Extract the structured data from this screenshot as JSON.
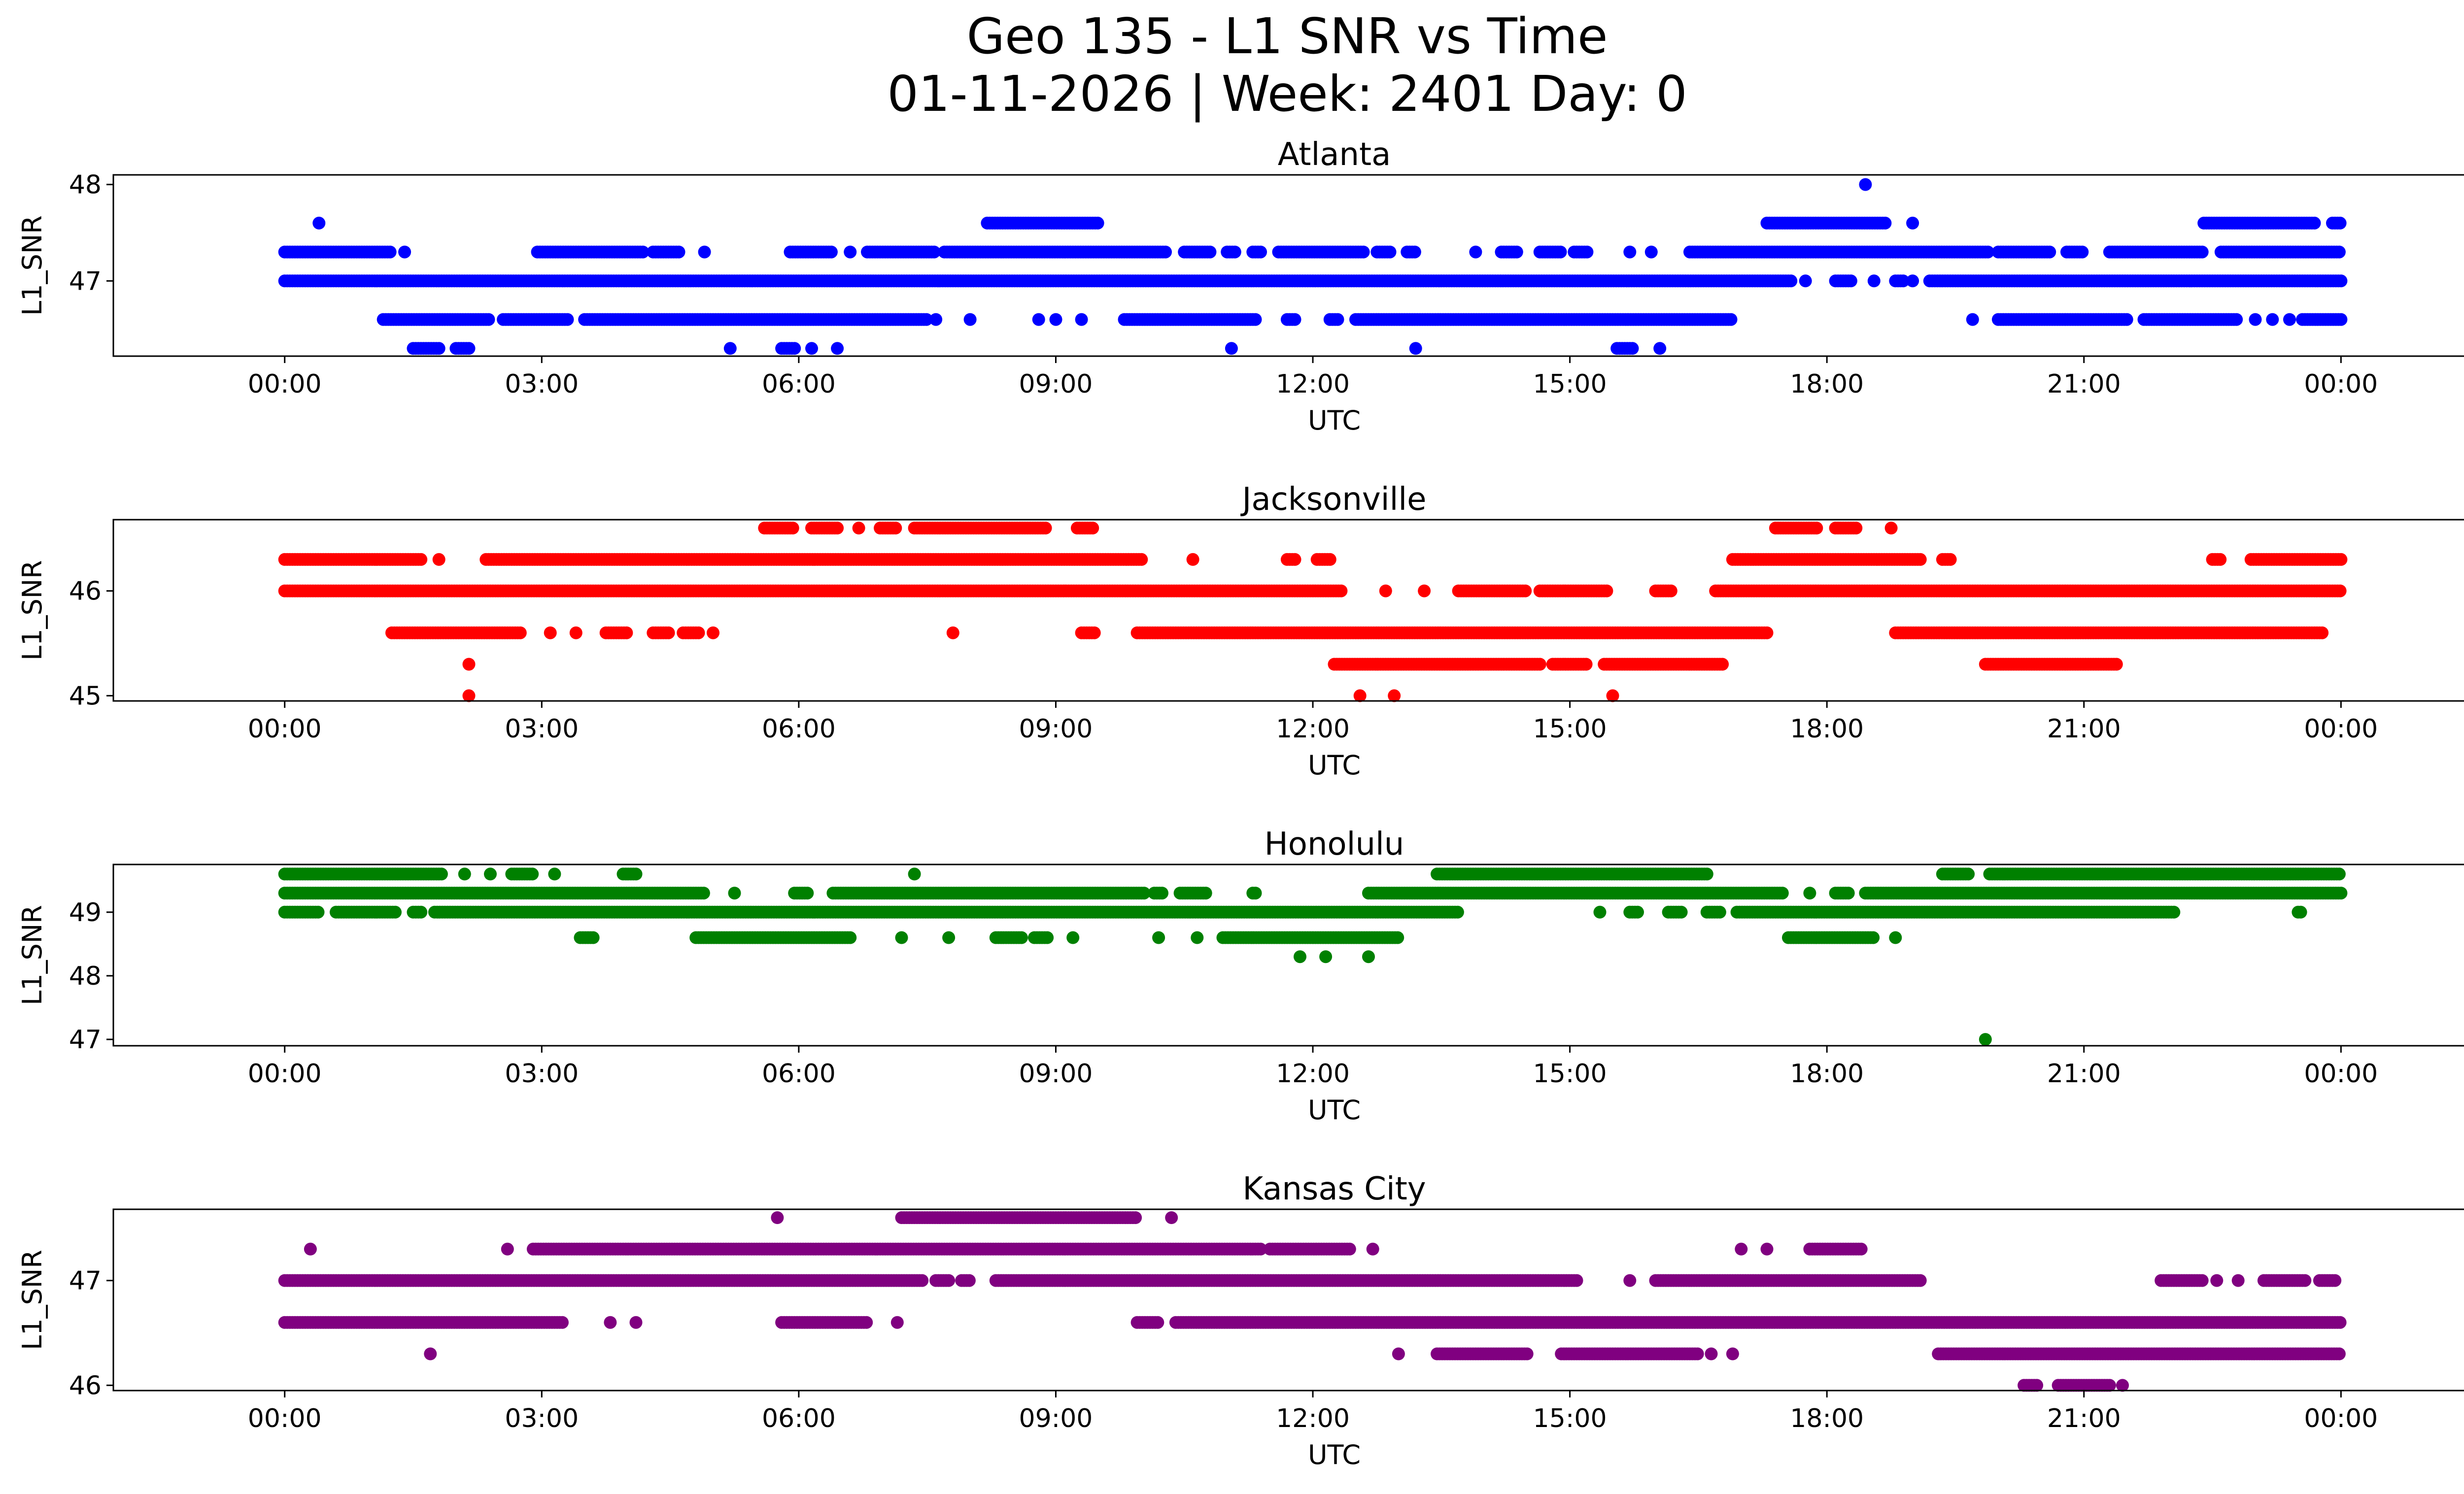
{
  "title": {
    "line1": "Geo 135 - L1 SNR vs Time",
    "line2": "01-11-2026 | Week: 2401 Day: 0"
  },
  "chart_data": [
    {
      "type": "scatter",
      "title": "Atlanta",
      "xlabel": "UTC",
      "ylabel": "L1_SNR",
      "color": "#0000ff",
      "xlim": [
        -2,
        26.5
      ],
      "ylim": [
        46.22,
        48.1
      ],
      "yticks": [
        47,
        48
      ],
      "xticks": [
        "00:00",
        "03:00",
        "06:00",
        "09:00",
        "12:00",
        "15:00",
        "18:00",
        "21:00",
        "00:00"
      ],
      "grid": false,
      "series": [
        {
          "y": 48.0,
          "runs": [
            [
              18.45,
              18.45
            ]
          ]
        },
        {
          "y": 47.6,
          "runs": [
            [
              0.4,
              0.4
            ],
            [
              8.2,
              9.5
            ],
            [
              17.3,
              18.7
            ],
            [
              19.0,
              19.0
            ],
            [
              22.4,
              23.7
            ],
            [
              23.9,
              24.0
            ]
          ]
        },
        {
          "y": 47.3,
          "runs": [
            [
              0.0,
              1.25
            ],
            [
              1.4,
              1.4
            ],
            [
              2.95,
              4.2
            ],
            [
              4.3,
              4.6
            ],
            [
              4.9,
              4.9
            ],
            [
              5.9,
              6.4
            ],
            [
              6.6,
              6.6
            ],
            [
              6.8,
              7.6
            ],
            [
              7.7,
              10.3
            ],
            [
              10.5,
              10.8
            ],
            [
              11.0,
              11.1
            ],
            [
              11.3,
              11.4
            ],
            [
              11.6,
              12.6
            ],
            [
              12.75,
              12.9
            ],
            [
              13.1,
              13.2
            ],
            [
              13.9,
              13.9
            ],
            [
              14.2,
              14.4
            ],
            [
              14.65,
              14.9
            ],
            [
              15.05,
              15.2
            ],
            [
              15.7,
              15.7
            ],
            [
              15.95,
              15.95
            ],
            [
              16.4,
              19.9
            ],
            [
              20.0,
              20.6
            ],
            [
              20.8,
              21.0
            ],
            [
              21.3,
              22.4
            ],
            [
              22.6,
              24.0
            ]
          ]
        },
        {
          "y": 47.0,
          "runs": [
            [
              0.0,
              17.6
            ],
            [
              17.75,
              17.75
            ],
            [
              18.1,
              18.3
            ],
            [
              18.55,
              18.55
            ],
            [
              18.8,
              18.9
            ],
            [
              19.0,
              19.0
            ],
            [
              19.2,
              24.0
            ]
          ]
        },
        {
          "y": 46.6,
          "runs": [
            [
              1.15,
              2.4
            ],
            [
              2.55,
              3.3
            ],
            [
              3.5,
              7.5
            ],
            [
              7.6,
              7.6
            ],
            [
              8.0,
              8.0
            ],
            [
              8.8,
              8.8
            ],
            [
              9.0,
              9.0
            ],
            [
              9.3,
              9.3
            ],
            [
              9.8,
              11.35
            ],
            [
              11.7,
              11.8
            ],
            [
              12.2,
              12.3
            ],
            [
              12.5,
              16.9
            ],
            [
              19.7,
              19.7
            ],
            [
              20.0,
              21.5
            ],
            [
              21.7,
              22.8
            ],
            [
              23.0,
              23.0
            ],
            [
              23.2,
              23.2
            ],
            [
              23.4,
              23.4
            ],
            [
              23.55,
              24.0
            ]
          ]
        },
        {
          "y": 46.3,
          "runs": [
            [
              1.5,
              1.8
            ],
            [
              2.0,
              2.15
            ],
            [
              5.2,
              5.2
            ],
            [
              5.8,
              5.95
            ],
            [
              6.15,
              6.15
            ],
            [
              6.45,
              6.45
            ],
            [
              11.05,
              11.05
            ],
            [
              13.2,
              13.2
            ],
            [
              15.55,
              15.75
            ],
            [
              16.05,
              16.05
            ]
          ]
        }
      ]
    },
    {
      "type": "scatter",
      "title": "Jacksonville",
      "xlabel": "UTC",
      "ylabel": "L1_SNR",
      "color": "#ff0000",
      "xlim": [
        -2,
        26.5
      ],
      "ylim": [
        44.95,
        46.68
      ],
      "yticks": [
        45,
        46
      ],
      "xticks": [
        "00:00",
        "03:00",
        "06:00",
        "09:00",
        "12:00",
        "15:00",
        "18:00",
        "21:00",
        "00:00"
      ],
      "grid": false,
      "series": [
        {
          "y": 46.6,
          "runs": [
            [
              5.6,
              5.95
            ],
            [
              6.15,
              6.45
            ],
            [
              6.7,
              6.7
            ],
            [
              6.95,
              7.15
            ],
            [
              7.35,
              8.9
            ],
            [
              9.25,
              9.45
            ],
            [
              17.4,
              17.9
            ],
            [
              18.1,
              18.35
            ],
            [
              18.75,
              18.75
            ]
          ]
        },
        {
          "y": 46.3,
          "runs": [
            [
              0.0,
              1.6
            ],
            [
              1.8,
              1.8
            ],
            [
              2.35,
              10.0
            ],
            [
              10.6,
              10.6
            ],
            [
              11.7,
              11.8
            ],
            [
              12.05,
              12.2
            ],
            [
              16.9,
              19.1
            ],
            [
              19.35,
              19.45
            ],
            [
              22.5,
              22.6
            ],
            [
              22.95,
              24.0
            ]
          ]
        },
        {
          "y": 46.0,
          "runs": [
            [
              0.0,
              12.35
            ],
            [
              12.85,
              12.85
            ],
            [
              13.3,
              13.3
            ],
            [
              13.7,
              14.5
            ],
            [
              14.65,
              15.45
            ],
            [
              16.0,
              16.2
            ],
            [
              16.7,
              24.0
            ]
          ]
        },
        {
          "y": 45.6,
          "runs": [
            [
              1.25,
              2.75
            ],
            [
              3.1,
              3.1
            ],
            [
              3.4,
              3.4
            ],
            [
              3.75,
              4.0
            ],
            [
              4.3,
              4.5
            ],
            [
              4.65,
              4.85
            ],
            [
              5.0,
              5.0
            ],
            [
              7.8,
              7.8
            ],
            [
              9.3,
              9.45
            ],
            [
              9.95,
              17.3
            ],
            [
              18.8,
              23.8
            ]
          ]
        },
        {
          "y": 45.3,
          "runs": [
            [
              2.15,
              2.15
            ],
            [
              12.25,
              14.65
            ],
            [
              14.8,
              15.2
            ],
            [
              15.4,
              16.8
            ],
            [
              19.85,
              21.4
            ]
          ]
        },
        {
          "y": 45.0,
          "runs": [
            [
              2.15,
              2.15
            ],
            [
              12.55,
              12.55
            ],
            [
              12.95,
              12.95
            ],
            [
              15.5,
              15.5
            ]
          ]
        }
      ]
    },
    {
      "type": "scatter",
      "title": "Honolulu",
      "xlabel": "UTC",
      "ylabel": "L1_SNR",
      "color": "#008000",
      "xlim": [
        -2,
        26.5
      ],
      "ylim": [
        46.9,
        49.75
      ],
      "yticks": [
        47,
        48,
        49
      ],
      "xticks": [
        "00:00",
        "03:00",
        "06:00",
        "09:00",
        "12:00",
        "15:00",
        "18:00",
        "21:00",
        "00:00"
      ],
      "grid": false,
      "series": [
        {
          "y": 49.6,
          "runs": [
            [
              0.0,
              1.85
            ],
            [
              2.1,
              2.1
            ],
            [
              2.4,
              2.4
            ],
            [
              2.65,
              2.9
            ],
            [
              3.15,
              3.15
            ],
            [
              3.95,
              4.1
            ],
            [
              7.35,
              7.35
            ],
            [
              13.45,
              16.6
            ],
            [
              19.35,
              19.65
            ],
            [
              19.9,
              24.0
            ]
          ]
        },
        {
          "y": 49.3,
          "runs": [
            [
              0.0,
              4.9
            ],
            [
              5.25,
              5.25
            ],
            [
              5.95,
              6.1
            ],
            [
              6.4,
              10.05
            ],
            [
              10.15,
              10.25
            ],
            [
              10.45,
              10.75
            ],
            [
              11.3,
              11.35
            ],
            [
              12.65,
              17.5
            ],
            [
              17.8,
              17.8
            ],
            [
              18.1,
              18.25
            ],
            [
              18.45,
              24.0
            ]
          ]
        },
        {
          "y": 49.0,
          "runs": [
            [
              0.0,
              0.4
            ],
            [
              0.6,
              1.3
            ],
            [
              1.5,
              1.6
            ],
            [
              1.75,
              13.7
            ],
            [
              15.35,
              15.35
            ],
            [
              15.7,
              15.8
            ],
            [
              16.15,
              16.3
            ],
            [
              16.6,
              16.75
            ],
            [
              16.95,
              22.05
            ],
            [
              23.5,
              23.55
            ]
          ]
        },
        {
          "y": 48.6,
          "runs": [
            [
              3.45,
              3.6
            ],
            [
              4.8,
              6.6
            ],
            [
              7.2,
              7.2
            ],
            [
              7.75,
              7.75
            ],
            [
              8.3,
              8.6
            ],
            [
              8.75,
              8.9
            ],
            [
              9.2,
              9.2
            ],
            [
              10.2,
              10.2
            ],
            [
              10.65,
              10.65
            ],
            [
              10.95,
              13.0
            ],
            [
              17.55,
              18.55
            ],
            [
              18.8,
              18.8
            ]
          ]
        },
        {
          "y": 48.3,
          "runs": [
            [
              11.85,
              11.85
            ],
            [
              12.15,
              12.15
            ],
            [
              12.65,
              12.65
            ]
          ]
        },
        {
          "y": 47.0,
          "runs": [
            [
              19.85,
              19.85
            ]
          ]
        }
      ]
    },
    {
      "type": "scatter",
      "title": "Kansas City",
      "xlabel": "UTC",
      "ylabel": "L1_SNR",
      "color": "#800080",
      "xlim": [
        -2,
        26.5
      ],
      "ylim": [
        45.95,
        47.68
      ],
      "yticks": [
        46,
        47
      ],
      "xticks": [
        "00:00",
        "03:00",
        "06:00",
        "09:00",
        "12:00",
        "15:00",
        "18:00",
        "21:00",
        "00:00"
      ],
      "grid": false,
      "series": [
        {
          "y": 47.6,
          "runs": [
            [
              5.75,
              5.75
            ],
            [
              7.2,
              9.95
            ],
            [
              10.35,
              10.35
            ]
          ]
        },
        {
          "y": 47.3,
          "runs": [
            [
              0.3,
              0.3
            ],
            [
              2.6,
              2.6
            ],
            [
              2.9,
              11.4
            ],
            [
              11.5,
              12.45
            ],
            [
              12.7,
              12.7
            ],
            [
              17.0,
              17.0
            ],
            [
              17.3,
              17.3
            ],
            [
              17.8,
              18.4
            ]
          ]
        },
        {
          "y": 47.0,
          "runs": [
            [
              0.0,
              7.45
            ],
            [
              7.6,
              7.75
            ],
            [
              7.9,
              8.0
            ],
            [
              8.3,
              15.1
            ],
            [
              15.7,
              15.7
            ],
            [
              16.0,
              19.1
            ],
            [
              21.9,
              22.4
            ],
            [
              22.55,
              22.55
            ],
            [
              22.8,
              22.8
            ],
            [
              23.1,
              23.6
            ],
            [
              23.75,
              23.95
            ]
          ]
        },
        {
          "y": 46.6,
          "runs": [
            [
              0.0,
              3.25
            ],
            [
              3.8,
              3.8
            ],
            [
              4.1,
              4.1
            ],
            [
              5.8,
              6.8
            ],
            [
              7.15,
              7.15
            ],
            [
              9.95,
              10.2
            ],
            [
              10.4,
              24.0
            ]
          ]
        },
        {
          "y": 46.3,
          "runs": [
            [
              1.7,
              1.7
            ],
            [
              13.0,
              13.0
            ],
            [
              13.45,
              14.5
            ],
            [
              14.9,
              16.5
            ],
            [
              16.65,
              16.65
            ],
            [
              16.9,
              16.9
            ],
            [
              19.3,
              24.0
            ]
          ]
        },
        {
          "y": 46.0,
          "runs": [
            [
              20.3,
              20.45
            ],
            [
              20.7,
              21.3
            ],
            [
              21.45,
              21.45
            ]
          ]
        }
      ]
    }
  ]
}
